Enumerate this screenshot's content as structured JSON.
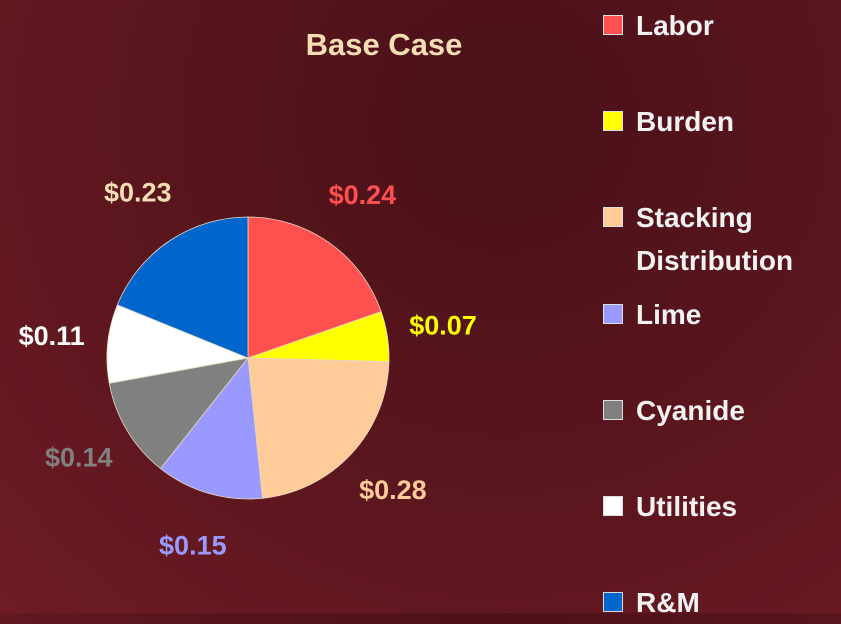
{
  "chart_data": {
    "type": "pie",
    "title": "Base Case",
    "categories": [
      "Labor",
      "Burden",
      "Stacking Distribution",
      "Lime",
      "Cyanide",
      "Utilities",
      "R&M"
    ],
    "values": [
      0.24,
      0.07,
      0.28,
      0.15,
      0.14,
      0.11,
      0.23
    ],
    "value_labels": [
      "$0.24",
      "$0.07",
      "$0.28",
      "$0.15",
      "$0.14",
      "$0.11",
      "$0.23"
    ],
    "colors": [
      "#ff5050",
      "#ffff00",
      "#ffcc99",
      "#9999ff",
      "#808080",
      "#ffffff",
      "#0066cc"
    ],
    "label_colors": [
      "#ff5050",
      "#ffff00",
      "#ffcc99",
      "#9999ff",
      "#808080",
      "#ffffff",
      "#f5deb3"
    ],
    "legend": "right"
  }
}
